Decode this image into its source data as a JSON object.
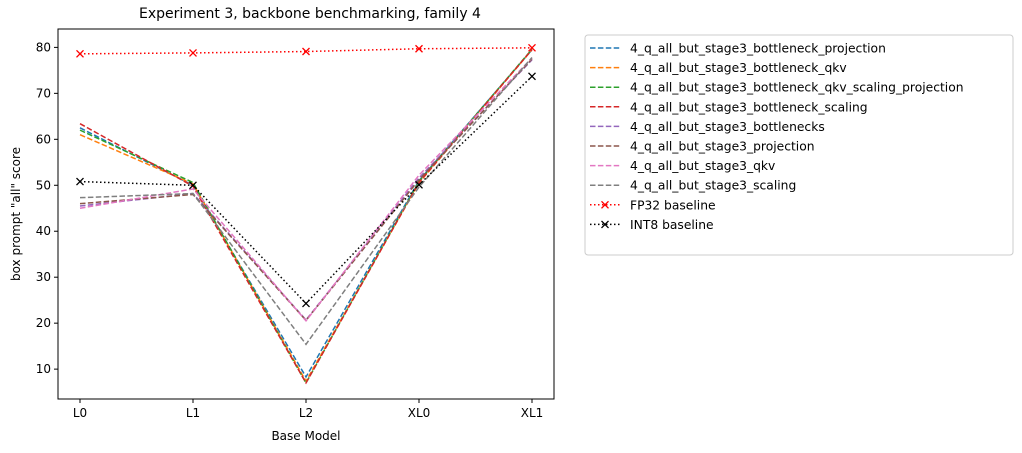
{
  "chart_data": {
    "type": "line",
    "title": "Experiment 3, backbone benchmarking, family 4",
    "xlabel": "Base Model",
    "ylabel": "box prompt \"all\" score",
    "categories": [
      "L0",
      "L1",
      "L2",
      "XL0",
      "XL1"
    ],
    "ylim": [
      3.5,
      84
    ],
    "yticks": [
      10,
      20,
      30,
      40,
      50,
      60,
      70,
      80
    ],
    "grid": false,
    "legend_position": "outside-right",
    "series": [
      {
        "name": "4_q_all_but_stage3_bottleneck_projection",
        "color": "#1f77b4",
        "style": "dashed",
        "marker": "none",
        "values": [
          62.5,
          50.0,
          8.3,
          51.0,
          79.5
        ]
      },
      {
        "name": "4_q_all_but_stage3_bottleneck_qkv",
        "color": "#ff7f0e",
        "style": "dashed",
        "marker": "none",
        "values": [
          61.0,
          50.3,
          7.4,
          50.5,
          79.5
        ]
      },
      {
        "name": "4_q_all_but_stage3_bottleneck_qkv_scaling_projection",
        "color": "#2ca02c",
        "style": "dashed",
        "marker": "none",
        "values": [
          62.0,
          50.6,
          7.0,
          50.8,
          79.6
        ]
      },
      {
        "name": "4_q_all_but_stage3_bottleneck_scaling",
        "color": "#d62728",
        "style": "dashed",
        "marker": "none",
        "values": [
          63.4,
          49.8,
          7.0,
          50.6,
          79.5
        ]
      },
      {
        "name": "4_q_all_but_stage3_bottlenecks",
        "color": "#9467bd",
        "style": "dashed",
        "marker": "none",
        "values": [
          45.5,
          48.2,
          20.7,
          51.6,
          77.3
        ]
      },
      {
        "name": "4_q_all_but_stage3_projection",
        "color": "#8c564b",
        "style": "dashed",
        "marker": "none",
        "values": [
          46.0,
          48.0,
          20.6,
          51.2,
          77.5
        ]
      },
      {
        "name": "4_q_all_but_stage3_qkv",
        "color": "#e377c2",
        "style": "dashed",
        "marker": "none",
        "values": [
          45.0,
          49.2,
          20.5,
          52.2,
          77.7
        ]
      },
      {
        "name": "4_q_all_but_stage3_scaling",
        "color": "#7f7f7f",
        "style": "dashed",
        "marker": "none",
        "values": [
          47.3,
          48.2,
          15.4,
          49.6,
          77.8
        ]
      },
      {
        "name": "FP32 baseline",
        "color": "#ff0000",
        "style": "dotted",
        "marker": "x",
        "values": [
          78.6,
          78.8,
          79.1,
          79.7,
          79.9
        ]
      },
      {
        "name": "INT8 baseline",
        "color": "#000000",
        "style": "dotted",
        "marker": "x",
        "values": [
          50.8,
          50.0,
          24.3,
          50.1,
          73.7
        ]
      }
    ]
  }
}
